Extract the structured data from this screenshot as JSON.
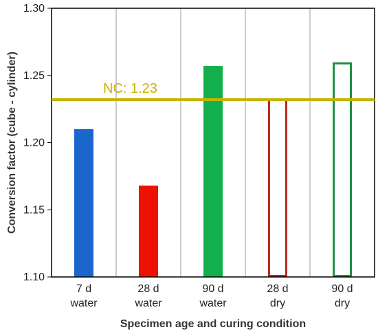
{
  "chart_data": {
    "type": "bar",
    "title": "",
    "xlabel": "Specimen age and curing condition",
    "ylabel": "Conversion factor (cube - cylinder)",
    "ylim": [
      1.1,
      1.3
    ],
    "yticks": [
      "1.10",
      "1.15",
      "1.20",
      "1.25",
      "1.30"
    ],
    "grid": "vertical",
    "categories": [
      [
        "7 d",
        "water"
      ],
      [
        "28 d",
        "water"
      ],
      [
        "90 d",
        "water"
      ],
      [
        "28 d",
        "dry"
      ],
      [
        "90 d",
        "dry"
      ]
    ],
    "values": [
      1.21,
      1.168,
      1.257,
      1.232,
      1.259
    ],
    "bar_colors": [
      "#1a66cc",
      "#ee1100",
      "#12b04a",
      "#c0281c",
      "#1f8f3f"
    ],
    "bar_fill": [
      "solid",
      "solid",
      "solid",
      "outline",
      "outline"
    ],
    "reference_line": {
      "label": "NC: 1.23",
      "value": 1.232,
      "color": "#c8b400"
    }
  }
}
